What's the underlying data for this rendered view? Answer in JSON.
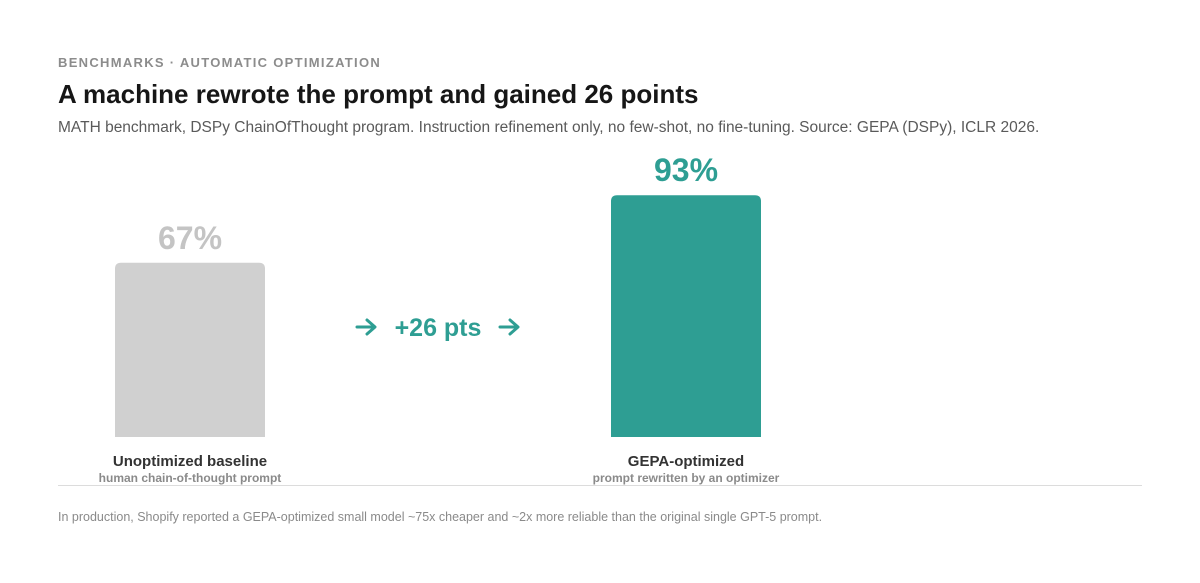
{
  "header": {
    "eyebrow": "BENCHMARKS · AUTOMATIC OPTIMIZATION",
    "title": "A machine rewrote the prompt and gained 26 points",
    "subtitle": "MATH benchmark, DSPy ChainOfThought program. Instruction refinement only, no few-shot, no fine-tuning. Source: GEPA (DSPy), ICLR 2026."
  },
  "chart_data": {
    "type": "bar",
    "categories": [
      "Unoptimized baseline",
      "GEPA-optimized"
    ],
    "sublabels": [
      "human chain-of-thought prompt",
      "prompt rewritten by an optimizer"
    ],
    "values": [
      67,
      93
    ],
    "value_labels": [
      "67%",
      "93%"
    ],
    "colors": [
      "#d0d0d0",
      "#2e9e93"
    ],
    "value_label_colors": [
      "#c4c4c4",
      "#2e9e93"
    ],
    "annotation": {
      "text": "+26 pts",
      "color": "#2e9e93"
    },
    "ylim": [
      0,
      100
    ],
    "grid": false
  },
  "footer": {
    "note": "In production, Shopify reported a GEPA-optimized small model ~75x cheaper and ~2x more reliable than the original single GPT-5 prompt."
  }
}
